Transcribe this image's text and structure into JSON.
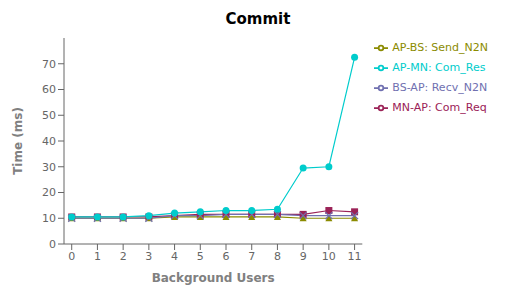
{
  "chart_data": {
    "type": "line",
    "title": "Commit",
    "xlabel": "Background Users",
    "ylabel": "Time (ms)",
    "x": [
      0,
      1,
      2,
      3,
      4,
      5,
      6,
      7,
      8,
      9,
      10,
      11
    ],
    "series": [
      {
        "name": "MN-AP: Com_Req",
        "color": "#9B2257",
        "marker": "square",
        "values": [
          10.5,
          10.5,
          10.5,
          10.5,
          11.0,
          11.5,
          11.5,
          11.5,
          11.5,
          11.5,
          13.0,
          12.5
        ]
      },
      {
        "name": "AP-BS: Send_N2N",
        "color": "#8B8B00",
        "marker": "triangle",
        "values": [
          10.0,
          10.0,
          10.0,
          10.0,
          10.5,
          10.5,
          10.5,
          10.5,
          10.5,
          10.0,
          10.0,
          10.0
        ]
      },
      {
        "name": "BS-AP: Recv_N2N",
        "color": "#7070B0",
        "marker": "x",
        "values": [
          10.0,
          10.0,
          10.0,
          10.0,
          11.0,
          11.0,
          11.5,
          11.5,
          11.5,
          11.0,
          11.0,
          11.0
        ]
      },
      {
        "name": "AP-MN: Com_Res",
        "color": "#00CCCC",
        "marker": "circle",
        "values": [
          10.5,
          10.5,
          10.5,
          11.0,
          12.0,
          12.5,
          13.0,
          13.0,
          13.5,
          29.5,
          30.0,
          72.5
        ]
      }
    ],
    "xlim": [
      -0.3,
      11.3
    ],
    "xticks": [
      0,
      1,
      2,
      3,
      4,
      5,
      6,
      7,
      8,
      9,
      10,
      11
    ],
    "ylim": [
      0,
      80
    ],
    "yticks": [
      0,
      10,
      20,
      30,
      40,
      50,
      60,
      70
    ],
    "grid": false,
    "legend": "right"
  }
}
